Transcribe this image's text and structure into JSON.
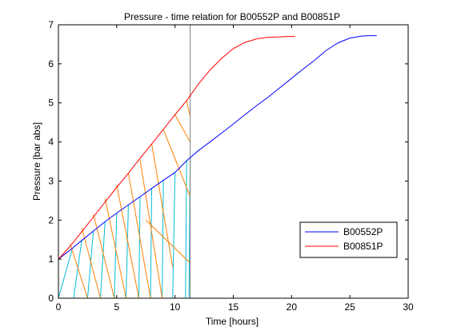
{
  "chart_data": {
    "type": "line",
    "title": "Pressure - time relation for B00552P and B00851P",
    "xlabel": "Time [hours]",
    "ylabel": "Pressure [bar abs]",
    "xlim": [
      0,
      30
    ],
    "ylim": [
      0,
      7
    ],
    "xticks": [
      0,
      5,
      10,
      15,
      20,
      25,
      30
    ],
    "yticks": [
      0,
      1,
      2,
      3,
      4,
      5,
      6,
      7
    ],
    "grid": false,
    "legend_position": "bottom-right",
    "series": [
      {
        "name": "B00552P",
        "color": "#0000ff",
        "x": [
          0,
          1.2,
          2,
          3,
          4,
          5,
          6,
          7,
          8,
          9,
          10,
          11,
          12,
          13,
          14,
          15,
          16,
          17,
          18,
          19,
          20,
          21,
          22,
          23,
          24,
          25,
          26,
          26.6,
          27.3
        ],
        "y": [
          1.0,
          1.28,
          1.48,
          1.72,
          1.96,
          2.18,
          2.39,
          2.6,
          2.81,
          3.02,
          3.22,
          3.52,
          3.78,
          4.0,
          4.23,
          4.46,
          4.7,
          4.93,
          5.15,
          5.39,
          5.63,
          5.87,
          6.1,
          6.35,
          6.54,
          6.66,
          6.71,
          6.72,
          6.72
        ]
      },
      {
        "name": "B00851P",
        "color": "#ff0000",
        "x": [
          0,
          1,
          2,
          3,
          4,
          5,
          6,
          7,
          8,
          9,
          10,
          11,
          12,
          13,
          14,
          15,
          16,
          17,
          18,
          19,
          19.6,
          20.3
        ],
        "y": [
          1.0,
          1.33,
          1.7,
          2.08,
          2.46,
          2.84,
          3.2,
          3.58,
          3.95,
          4.32,
          4.7,
          5.06,
          5.48,
          5.84,
          6.14,
          6.39,
          6.55,
          6.64,
          6.68,
          6.69,
          6.7,
          6.7
        ]
      }
    ],
    "vertical_line": {
      "x": 11.3,
      "color": "#808080"
    },
    "annotation_lines": [
      {
        "color": "#00bcd4",
        "x": [
          0,
          0
        ],
        "y": [
          0,
          1.0
        ]
      },
      {
        "color": "#00bcd4",
        "x": [
          0,
          1.2
        ],
        "y": [
          0,
          1.28
        ]
      },
      {
        "color": "#00bcd4",
        "x": [
          1.3,
          2.0
        ],
        "y": [
          0,
          1.48
        ]
      },
      {
        "color": "#00bcd4",
        "x": [
          2.5,
          3.0
        ],
        "y": [
          0,
          1.72
        ]
      },
      {
        "color": "#00bcd4",
        "x": [
          3.6,
          4.0
        ],
        "y": [
          0,
          1.96
        ]
      },
      {
        "color": "#00bcd4",
        "x": [
          4.8,
          5.0
        ],
        "y": [
          0,
          2.18
        ]
      },
      {
        "color": "#00bcd4",
        "x": [
          5.8,
          6.0
        ],
        "y": [
          0,
          2.39
        ]
      },
      {
        "color": "#00bcd4",
        "x": [
          6.9,
          7.0
        ],
        "y": [
          0,
          2.6
        ]
      },
      {
        "color": "#00bcd4",
        "x": [
          7.9,
          8.0
        ],
        "y": [
          0,
          2.81
        ]
      },
      {
        "color": "#00bcd4",
        "x": [
          8.9,
          9.0
        ],
        "y": [
          0,
          3.02
        ]
      },
      {
        "color": "#00bcd4",
        "x": [
          9.8,
          10.0
        ],
        "y": [
          0,
          3.22
        ]
      },
      {
        "color": "#00bcd4",
        "x": [
          10.9,
          11.0
        ],
        "y": [
          0,
          3.52
        ]
      },
      {
        "color": "#00bcd4",
        "x": [
          11.2,
          11.3
        ],
        "y": [
          0,
          3.62
        ]
      },
      {
        "color": "#ff8000",
        "x": [
          0.0,
          1.2
        ],
        "y": [
          1.0,
          1.28
        ]
      },
      {
        "color": "#ff8000",
        "x": [
          1.0,
          2.5
        ],
        "y": [
          1.4,
          0.0
        ]
      },
      {
        "color": "#ff8000",
        "x": [
          2.0,
          3.6
        ],
        "y": [
          1.8,
          0.0
        ]
      },
      {
        "color": "#ff8000",
        "x": [
          3.0,
          4.8
        ],
        "y": [
          2.15,
          0.0
        ]
      },
      {
        "color": "#ff8000",
        "x": [
          4.0,
          5.8
        ],
        "y": [
          2.55,
          0.0
        ]
      },
      {
        "color": "#ff8000",
        "x": [
          5.0,
          6.9
        ],
        "y": [
          2.9,
          0.0
        ]
      },
      {
        "color": "#ff8000",
        "x": [
          6.0,
          7.9
        ],
        "y": [
          3.2,
          0.0
        ]
      },
      {
        "color": "#ff8000",
        "x": [
          7.0,
          8.9
        ],
        "y": [
          3.55,
          0.0
        ]
      },
      {
        "color": "#ff8000",
        "x": [
          8.0,
          9.8
        ],
        "y": [
          3.95,
          0.8
        ]
      },
      {
        "color": "#ff8000",
        "x": [
          9.0,
          11.3
        ],
        "y": [
          4.32,
          2.6
        ]
      },
      {
        "color": "#ff8000",
        "x": [
          10.0,
          11.3
        ],
        "y": [
          4.7,
          4.0
        ]
      },
      {
        "color": "#ff8000",
        "x": [
          11.0,
          11.3
        ],
        "y": [
          5.06,
          4.65
        ]
      },
      {
        "color": "#ff8000",
        "x": [
          7.5,
          11.3
        ],
        "y": [
          2.0,
          0.9
        ]
      }
    ]
  }
}
